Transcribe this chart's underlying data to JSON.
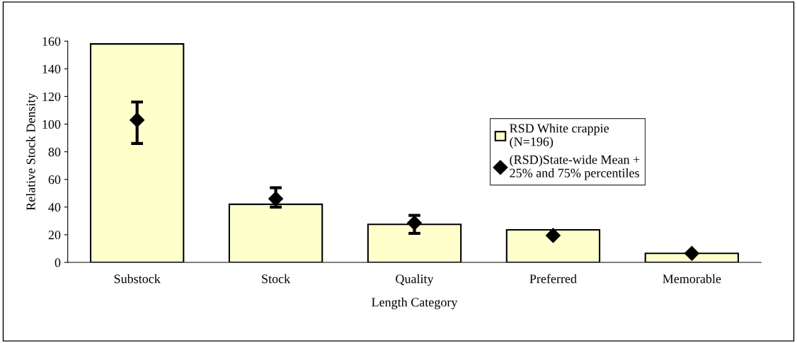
{
  "chart_data": {
    "type": "bar",
    "xlabel": "Length Category",
    "ylabel": "Relative Stock Density",
    "categories": [
      "Substock",
      "Stock",
      "Quality",
      "Preferred",
      "Memorable"
    ],
    "series": [
      {
        "name": "RSD White crappie\n(N=196)",
        "color": "#ffffcc",
        "values": [
          158,
          42,
          27.5,
          23.5,
          6.5
        ]
      },
      {
        "name": "(RSD)State-wide Mean +\n25% and 75% percentiles",
        "type": "scatter",
        "color": "#000000",
        "values": [
          103,
          46,
          28.5,
          19.5,
          6.5
        ],
        "errors": [
          [
            86,
            116
          ],
          [
            40,
            54
          ],
          [
            21,
            34
          ],
          null,
          null
        ]
      }
    ],
    "ylim": [
      0,
      160
    ],
    "yticks": [
      0,
      20,
      40,
      60,
      80,
      100,
      120,
      140,
      160
    ],
    "grid": false,
    "legend": "right",
    "marker": "diamond"
  }
}
